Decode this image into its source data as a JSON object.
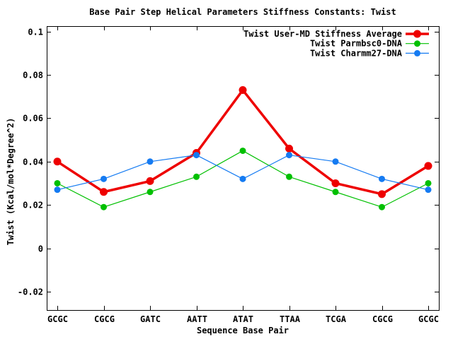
{
  "chart_data": {
    "type": "line",
    "title": "Base Pair Step Helical Parameters Stiffness Constants: Twist",
    "xlabel": "Sequence Base Pair",
    "ylabel": "Twist (Kcal/mol*Degree^2)",
    "categories": [
      "GCGC",
      "CGCG",
      "GATC",
      "AATT",
      "ATAT",
      "TTAA",
      "TCGA",
      "CGCG",
      "GCGC"
    ],
    "series": [
      {
        "name": "Twist User-MD Stiffness Average",
        "color": "#ee0000",
        "line_width": 3.5,
        "marker_radius": 5.5,
        "values": [
          0.04,
          0.026,
          0.031,
          0.044,
          0.073,
          0.046,
          0.03,
          0.025,
          0.038
        ]
      },
      {
        "name": "Twist Parmbsc0-DNA",
        "color": "#00c000",
        "line_width": 1.2,
        "marker_radius": 4.5,
        "values": [
          0.03,
          0.019,
          0.026,
          0.033,
          0.045,
          0.033,
          0.026,
          0.019,
          0.03
        ]
      },
      {
        "name": "Twist Charmm27-DNA",
        "color": "#157bf2",
        "line_width": 1.2,
        "marker_radius": 4.5,
        "values": [
          0.027,
          0.032,
          0.04,
          0.043,
          0.032,
          0.043,
          0.04,
          0.032,
          0.027
        ]
      }
    ],
    "ylim": [
      -0.0285,
      0.1025
    ],
    "yticks": [
      0.1,
      0.08,
      0.06,
      0.04,
      0.02,
      0,
      -0.02
    ],
    "ytick_labels": [
      "0.1",
      "0.08",
      "0.06",
      "0.04",
      "0.02",
      "0",
      "-0.02"
    ],
    "grid": false,
    "legend_position": "top-right",
    "background_color": "#ffffff",
    "axis_color": "#000000"
  }
}
